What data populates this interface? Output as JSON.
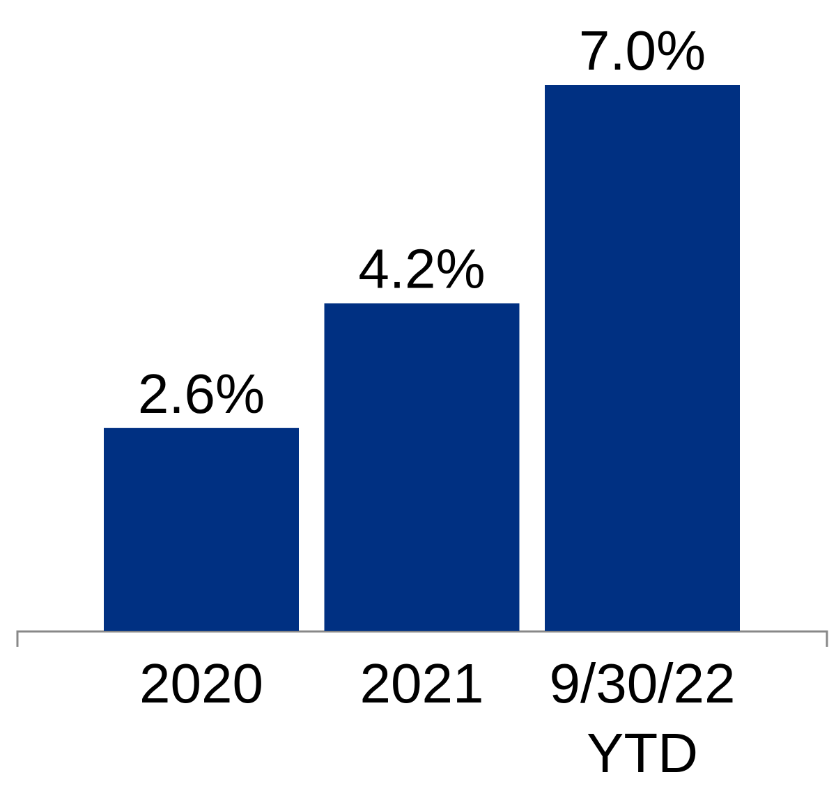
{
  "chart_data": {
    "type": "bar",
    "categories": [
      "2020",
      "2021",
      "9/30/22\nYTD"
    ],
    "values": [
      2.6,
      4.2,
      7.0
    ],
    "value_labels": [
      "2.6%",
      "4.2%",
      "7.0%"
    ],
    "color": "#003082"
  }
}
